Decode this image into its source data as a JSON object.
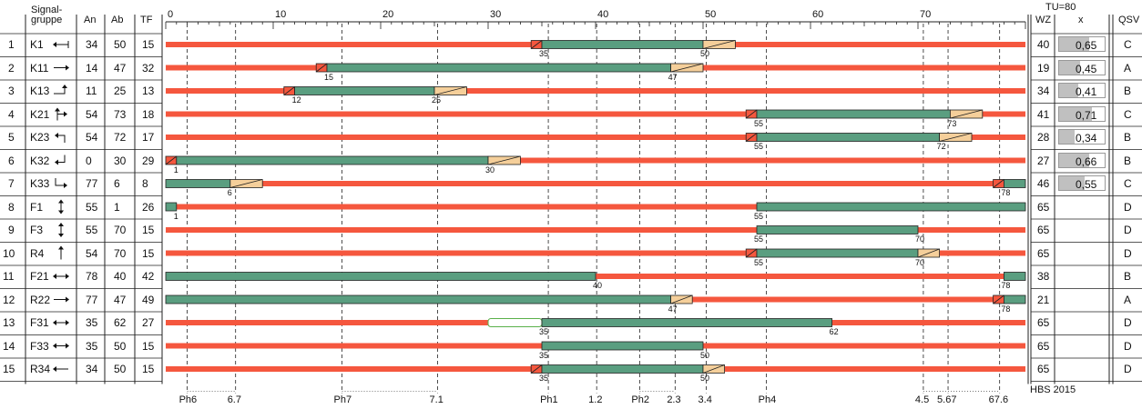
{
  "header": {
    "group_label_1": "Signal-",
    "group_label_2": "gruppe",
    "an": "An",
    "ab": "Ab",
    "tf": "TF",
    "wz": "WZ",
    "x": "x",
    "qsv": "QSV",
    "tu": "TU=80"
  },
  "footer": {
    "hbs": "HBS 2015"
  },
  "axis": {
    "min": 0,
    "max": 80,
    "ticks": [
      "0",
      "10",
      "20",
      "30",
      "40",
      "50",
      "60",
      "70"
    ]
  },
  "phases": [
    {
      "label": "Ph6",
      "pos": 2
    },
    {
      "label": "6.7",
      "pos": 6.5
    },
    {
      "label": "Ph7",
      "pos": 16.4
    },
    {
      "label": "7.1",
      "pos": 25.3
    },
    {
      "label": "Ph1",
      "pos": 35.6
    },
    {
      "label": "1.2",
      "pos": 40.1
    },
    {
      "label": "Ph2",
      "pos": 44.1
    },
    {
      "label": "2.3",
      "pos": 47.4
    },
    {
      "label": "3.4",
      "pos": 50.3
    },
    {
      "label": "Ph4",
      "pos": 55.9
    },
    {
      "label": "4.5",
      "pos": 70.5
    },
    {
      "label": "5.67",
      "pos": 72.8
    },
    {
      "label": "67.6",
      "pos": 77.6
    }
  ],
  "colors": {
    "red": "#f5573e",
    "green": "#5a9e80",
    "yellow": "#f5cf9a",
    "gray": "#c0c0c0"
  },
  "rows": [
    {
      "num": "1",
      "name": "K1",
      "icon": "arrow-left-icon",
      "an": "34",
      "ab": "50",
      "tf": "15",
      "wz": "40",
      "x": "0,65",
      "xv": 0.65,
      "qsv": "C",
      "bars": [
        {
          "t": "r",
          "s": 0,
          "e": 80
        },
        {
          "t": "ry",
          "s": 34,
          "e": 35
        },
        {
          "t": "g",
          "s": 35,
          "e": 50
        },
        {
          "t": "y",
          "s": 50,
          "e": 53
        }
      ],
      "labels": [
        {
          "v": "35",
          "p": 35
        },
        {
          "v": "50",
          "p": 50
        }
      ]
    },
    {
      "num": "2",
      "name": "K11",
      "icon": "arrow-right-icon",
      "an": "14",
      "ab": "47",
      "tf": "32",
      "wz": "19",
      "x": "0,45",
      "xv": 0.45,
      "qsv": "A",
      "bars": [
        {
          "t": "r",
          "s": 0,
          "e": 80
        },
        {
          "t": "ry",
          "s": 14,
          "e": 15
        },
        {
          "t": "g",
          "s": 15,
          "e": 47
        },
        {
          "t": "y",
          "s": 47,
          "e": 50
        }
      ],
      "labels": [
        {
          "v": "15",
          "p": 15
        },
        {
          "v": "47",
          "p": 47
        }
      ]
    },
    {
      "num": "3",
      "name": "K13",
      "icon": "turn-up-icon",
      "an": "11",
      "ab": "25",
      "tf": "13",
      "wz": "34",
      "x": "0,41",
      "xv": 0.41,
      "qsv": "B",
      "bars": [
        {
          "t": "r",
          "s": 0,
          "e": 80
        },
        {
          "t": "ry",
          "s": 11,
          "e": 12
        },
        {
          "t": "g",
          "s": 12,
          "e": 25
        },
        {
          "t": "y",
          "s": 25,
          "e": 28
        }
      ],
      "labels": [
        {
          "v": "12",
          "p": 12
        },
        {
          "v": "25",
          "p": 25
        }
      ]
    },
    {
      "num": "4",
      "name": "K21",
      "icon": "branch-right-icon",
      "an": "54",
      "ab": "73",
      "tf": "18",
      "wz": "41",
      "x": "0,71",
      "xv": 0.71,
      "qsv": "C",
      "bars": [
        {
          "t": "r",
          "s": 0,
          "e": 80
        },
        {
          "t": "ry",
          "s": 54,
          "e": 55
        },
        {
          "t": "g",
          "s": 55,
          "e": 73
        },
        {
          "t": "y",
          "s": 73,
          "e": 76
        }
      ],
      "labels": [
        {
          "v": "55",
          "p": 55
        },
        {
          "v": "73",
          "p": 73
        }
      ]
    },
    {
      "num": "5",
      "name": "K23",
      "icon": "turn-left-up-icon",
      "an": "54",
      "ab": "72",
      "tf": "17",
      "wz": "28",
      "x": "0,34",
      "xv": 0.34,
      "qsv": "B",
      "bars": [
        {
          "t": "r",
          "s": 0,
          "e": 80
        },
        {
          "t": "ry",
          "s": 54,
          "e": 55
        },
        {
          "t": "g",
          "s": 55,
          "e": 72
        },
        {
          "t": "y",
          "s": 72,
          "e": 75
        }
      ],
      "labels": [
        {
          "v": "55",
          "p": 55
        },
        {
          "v": "72",
          "p": 72
        }
      ]
    },
    {
      "num": "6",
      "name": "K32",
      "icon": "turn-left-down-icon",
      "an": "0",
      "ab": "30",
      "tf": "29",
      "wz": "27",
      "x": "0,66",
      "xv": 0.66,
      "qsv": "B",
      "bars": [
        {
          "t": "r",
          "s": 0,
          "e": 80
        },
        {
          "t": "ry",
          "s": 0,
          "e": 1
        },
        {
          "t": "g",
          "s": 1,
          "e": 30
        },
        {
          "t": "y",
          "s": 30,
          "e": 33
        }
      ],
      "labels": [
        {
          "v": "1",
          "p": 1
        },
        {
          "v": "30",
          "p": 30
        }
      ]
    },
    {
      "num": "7",
      "name": "K33",
      "icon": "turn-right-down-icon",
      "an": "77",
      "ab": "6",
      "tf": "8",
      "wz": "46",
      "x": "0,55",
      "xv": 0.55,
      "qsv": "C",
      "bars": [
        {
          "t": "r",
          "s": 0,
          "e": 80
        },
        {
          "t": "g",
          "s": 0,
          "e": 6
        },
        {
          "t": "y",
          "s": 6,
          "e": 9
        },
        {
          "t": "ry",
          "s": 77,
          "e": 78
        },
        {
          "t": "g",
          "s": 78,
          "e": 80
        }
      ],
      "labels": [
        {
          "v": "6",
          "p": 6
        },
        {
          "v": "78",
          "p": 78
        }
      ]
    },
    {
      "num": "8",
      "name": "F1",
      "icon": "pedestrian-vertical-icon",
      "an": "55",
      "ab": "1",
      "tf": "26",
      "wz": "65",
      "x": "",
      "xv": 0,
      "qsv": "D",
      "bars": [
        {
          "t": "r",
          "s": 0,
          "e": 80
        },
        {
          "t": "g",
          "s": 0,
          "e": 1
        },
        {
          "t": "g",
          "s": 55,
          "e": 80
        }
      ],
      "labels": [
        {
          "v": "1",
          "p": 1
        },
        {
          "v": "55",
          "p": 55
        }
      ]
    },
    {
      "num": "9",
      "name": "F3",
      "icon": "pedestrian-vertical-icon",
      "an": "55",
      "ab": "70",
      "tf": "15",
      "wz": "65",
      "x": "",
      "xv": 0,
      "qsv": "D",
      "bars": [
        {
          "t": "r",
          "s": 0,
          "e": 80
        },
        {
          "t": "g",
          "s": 55,
          "e": 70
        }
      ],
      "labels": [
        {
          "v": "55",
          "p": 55
        },
        {
          "v": "70",
          "p": 70
        }
      ]
    },
    {
      "num": "10",
      "name": "R4",
      "icon": "bicycle-up-icon",
      "an": "54",
      "ab": "70",
      "tf": "15",
      "wz": "65",
      "x": "",
      "xv": 0,
      "qsv": "D",
      "bars": [
        {
          "t": "r",
          "s": 0,
          "e": 80
        },
        {
          "t": "ry",
          "s": 54,
          "e": 55
        },
        {
          "t": "g",
          "s": 55,
          "e": 70
        },
        {
          "t": "y",
          "s": 70,
          "e": 72
        }
      ],
      "labels": [
        {
          "v": "55",
          "p": 55
        },
        {
          "v": "70",
          "p": 70
        }
      ]
    },
    {
      "num": "11",
      "name": "F21",
      "icon": "pedestrian-horizontal-icon",
      "an": "78",
      "ab": "40",
      "tf": "42",
      "wz": "38",
      "x": "",
      "xv": 0,
      "qsv": "B",
      "bars": [
        {
          "t": "r",
          "s": 0,
          "e": 80
        },
        {
          "t": "g",
          "s": 0,
          "e": 40
        },
        {
          "t": "g",
          "s": 78,
          "e": 80
        }
      ],
      "labels": [
        {
          "v": "40",
          "p": 40
        },
        {
          "v": "78",
          "p": 78
        }
      ]
    },
    {
      "num": "12",
      "name": "R22",
      "icon": "bicycle-right-icon",
      "an": "77",
      "ab": "47",
      "tf": "49",
      "wz": "21",
      "x": "",
      "xv": 0,
      "qsv": "A",
      "bars": [
        {
          "t": "r",
          "s": 0,
          "e": 80
        },
        {
          "t": "g",
          "s": 0,
          "e": 47
        },
        {
          "t": "y",
          "s": 47,
          "e": 49
        },
        {
          "t": "ry",
          "s": 77,
          "e": 78
        },
        {
          "t": "g",
          "s": 78,
          "e": 80
        }
      ],
      "labels": [
        {
          "v": "47",
          "p": 47
        },
        {
          "v": "78",
          "p": 78
        }
      ]
    },
    {
      "num": "13",
      "name": "F31",
      "icon": "pedestrian-horizontal-icon",
      "an": "35",
      "ab": "62",
      "tf": "27",
      "wz": "65",
      "x": "",
      "xv": 0,
      "qsv": "D",
      "bars": [
        {
          "t": "r",
          "s": 0,
          "e": 80
        },
        {
          "t": "o",
          "s": 30,
          "e": 35
        },
        {
          "t": "g",
          "s": 35,
          "e": 62
        }
      ],
      "labels": [
        {
          "v": "35",
          "p": 35
        },
        {
          "v": "62",
          "p": 62
        }
      ]
    },
    {
      "num": "14",
      "name": "F33",
      "icon": "pedestrian-horizontal-icon",
      "an": "35",
      "ab": "50",
      "tf": "15",
      "wz": "65",
      "x": "",
      "xv": 0,
      "qsv": "D",
      "bars": [
        {
          "t": "r",
          "s": 0,
          "e": 80
        },
        {
          "t": "g",
          "s": 35,
          "e": 50
        }
      ],
      "labels": [
        {
          "v": "35",
          "p": 35
        },
        {
          "v": "50",
          "p": 50
        }
      ]
    },
    {
      "num": "15",
      "name": "R34",
      "icon": "bicycle-left-icon",
      "an": "34",
      "ab": "50",
      "tf": "15",
      "wz": "65",
      "x": "",
      "xv": 0,
      "qsv": "D",
      "bars": [
        {
          "t": "r",
          "s": 0,
          "e": 80
        },
        {
          "t": "ry",
          "s": 34,
          "e": 35
        },
        {
          "t": "g",
          "s": 35,
          "e": 50
        },
        {
          "t": "y",
          "s": 50,
          "e": 52
        }
      ],
      "labels": [
        {
          "v": "35",
          "p": 35
        },
        {
          "v": "50",
          "p": 50
        }
      ]
    }
  ]
}
